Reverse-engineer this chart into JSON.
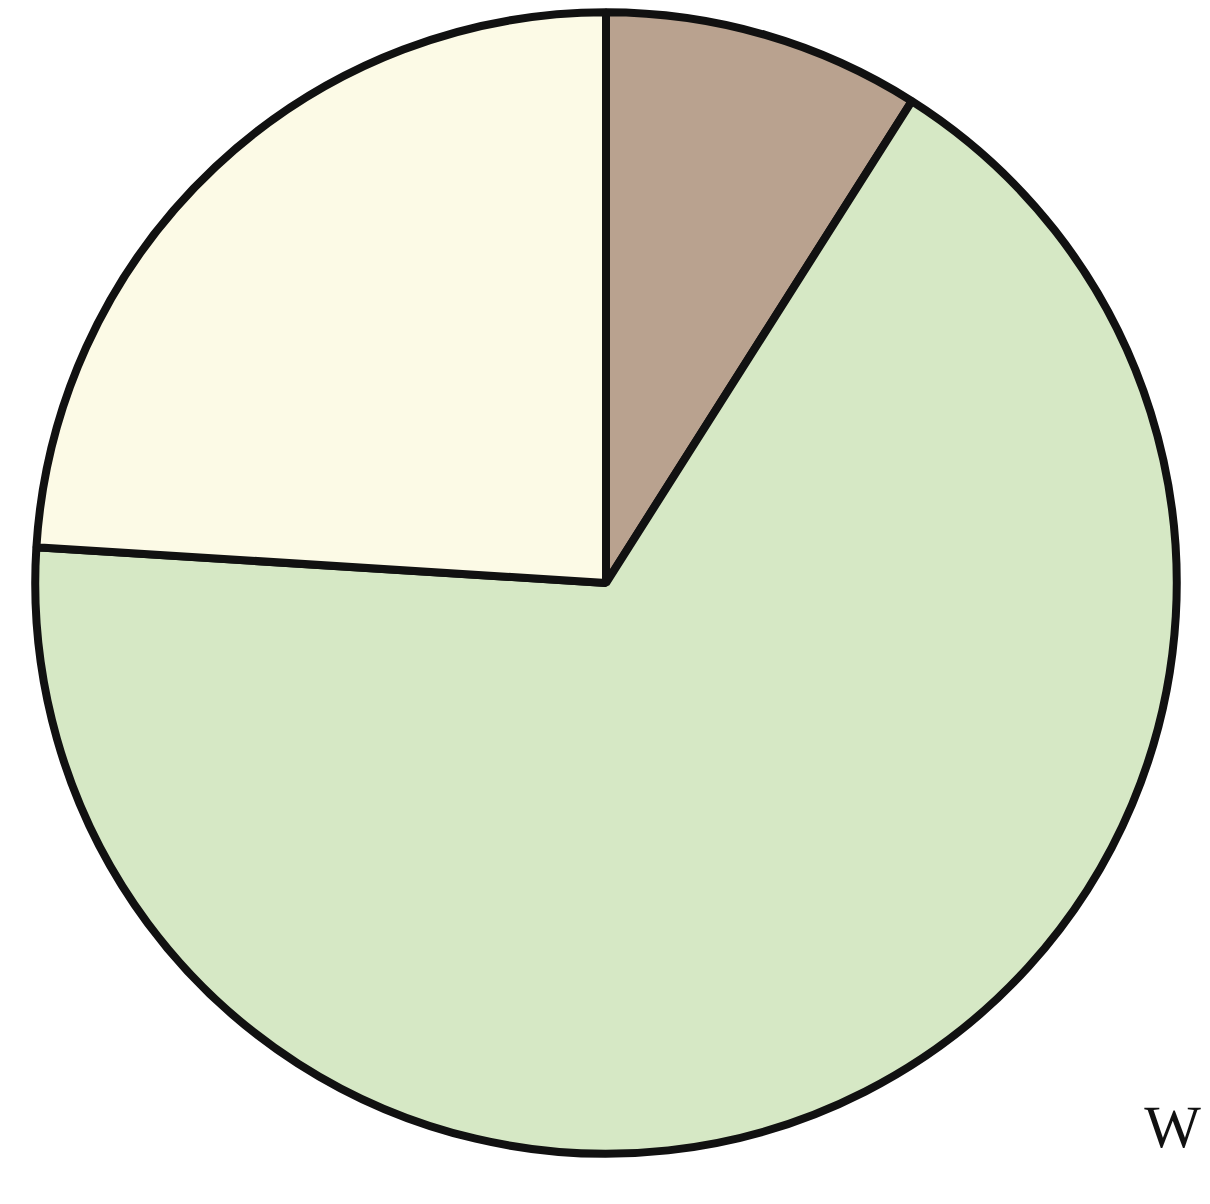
{
  "chart_data": {
    "type": "pie",
    "categories": [
      null,
      null,
      null
    ],
    "values": [
      9,
      67,
      24
    ],
    "colors": [
      "#b9a28f",
      "#d6e8c5",
      "#fcfae6"
    ],
    "annotations": [
      "W"
    ]
  }
}
